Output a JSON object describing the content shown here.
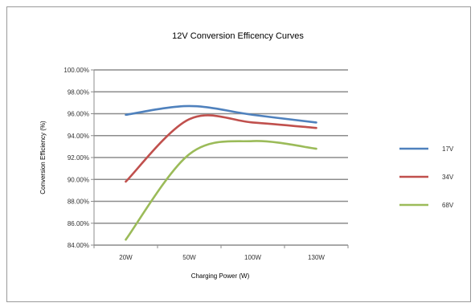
{
  "chart_data": {
    "type": "line",
    "title": "12V Conversion Efficency Curves",
    "xlabel": "Charging Power (W)",
    "ylabel": "Conversion Efficiency (%)",
    "categories": [
      "20W",
      "50W",
      "100W",
      "130W"
    ],
    "y_tick_labels": [
      "84.00%",
      "86.00%",
      "88.00%",
      "90.00%",
      "92.00%",
      "94.00%",
      "96.00%",
      "98.00%",
      "100.00%"
    ],
    "ylim": [
      84,
      100
    ],
    "grid": true,
    "legend_position": "right",
    "series": [
      {
        "name": "17V",
        "color": "#4F81BD",
        "values": [
          95.9,
          96.7,
          95.9,
          95.2
        ]
      },
      {
        "name": "34V",
        "color": "#C0504D",
        "values": [
          89.8,
          95.5,
          95.2,
          94.7
        ]
      },
      {
        "name": "68V",
        "color": "#9BBB59",
        "values": [
          84.5,
          92.3,
          93.5,
          92.8
        ]
      }
    ]
  }
}
